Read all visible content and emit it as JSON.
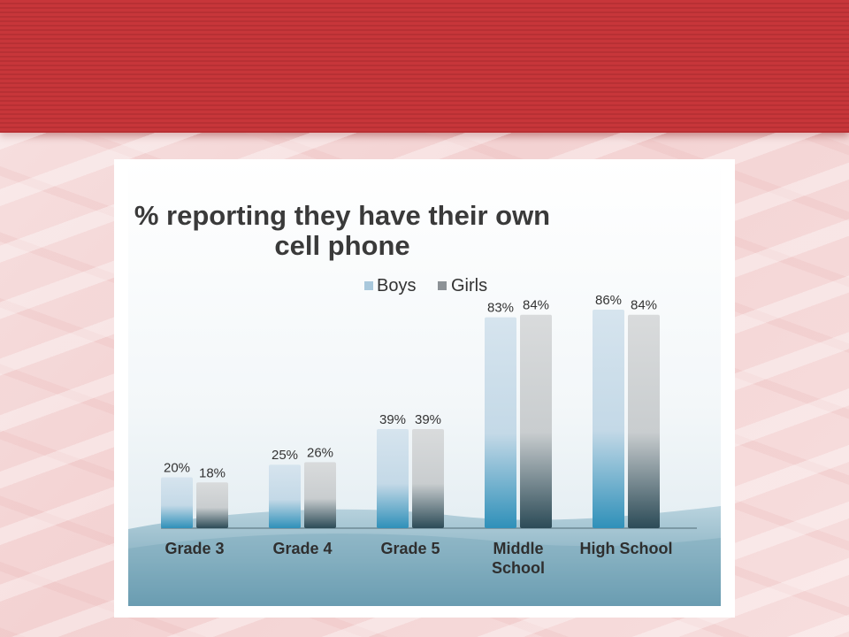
{
  "chart_data": {
    "type": "bar",
    "title": "% reporting they have their own cell phone",
    "title_lines": [
      "% reporting they have their own",
      "cell phone"
    ],
    "categories": [
      "Grade 3",
      "Grade 4",
      "Grade 5",
      "Middle School",
      "High School"
    ],
    "category_lines": [
      [
        "Grade 3"
      ],
      [
        "Grade 4"
      ],
      [
        "Grade 5"
      ],
      [
        "Middle",
        "School"
      ],
      [
        "High School"
      ]
    ],
    "series": [
      {
        "name": "Boys",
        "values": [
          20,
          25,
          39,
          83,
          86
        ],
        "labels": [
          "20%",
          "25%",
          "39%",
          "83%",
          "86%"
        ],
        "color": "#a9c8dc"
      },
      {
        "name": "Girls",
        "values": [
          18,
          26,
          39,
          84,
          84
        ],
        "labels": [
          "18%",
          "26%",
          "39%",
          "84%",
          "84%"
        ],
        "color": "#b6bcc0"
      }
    ],
    "ylim": [
      0,
      100
    ],
    "grid": false,
    "legend_position": "top-center",
    "colors": {
      "boys_light": "#c9dcea",
      "boys_dark": "#2f8fb8",
      "girls_light": "#d3d6d8",
      "girls_dark": "#2c4b57"
    }
  }
}
